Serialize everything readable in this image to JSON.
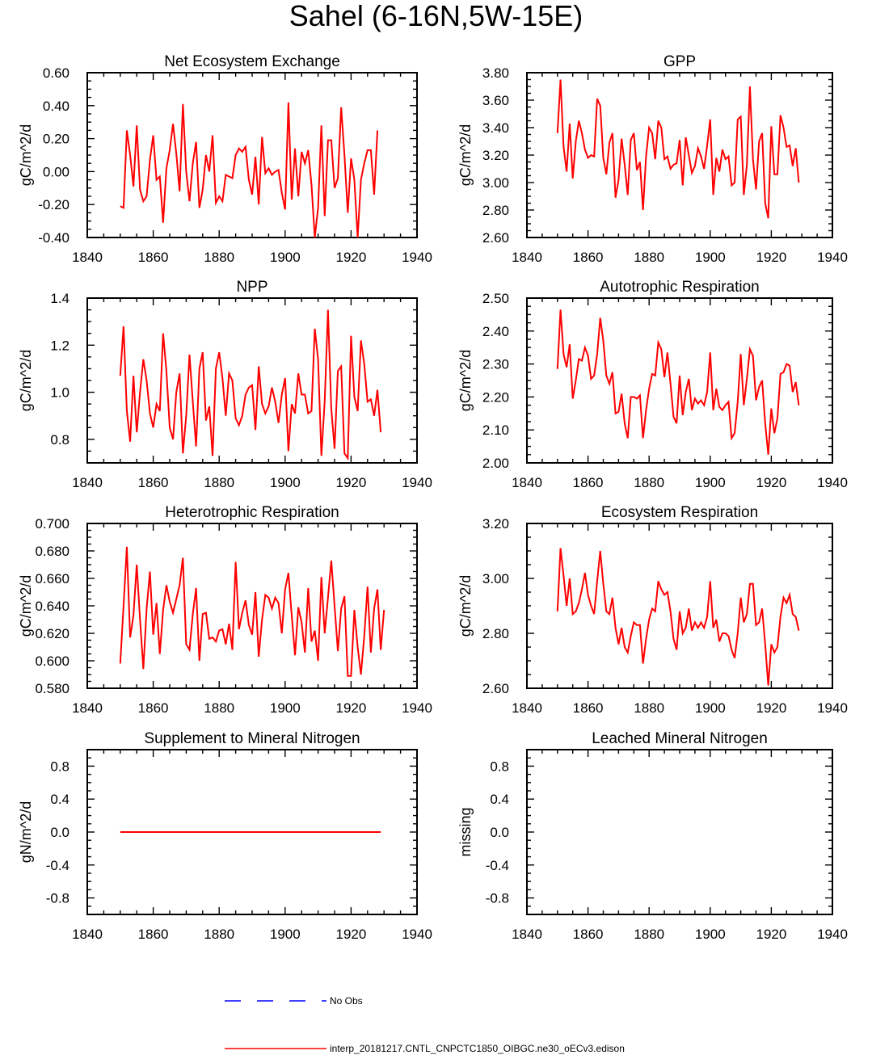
{
  "title": "Sahel (6-16N,5W-15E)",
  "colors": {
    "model": "#ff0000",
    "obs": "#0000ff",
    "axis": "#000000"
  },
  "legend": {
    "obs_label": "No Obs",
    "model_label": "interp_20181217.CNTL_CNPCTC1850_OIBGC.ne30_oECv3.edison"
  },
  "chart_data": [
    {
      "type": "line",
      "title": "Net Ecosystem Exchange",
      "ylabel": "gC/m^2/d",
      "xlim": [
        1840,
        1940
      ],
      "xticks": [
        1840,
        1860,
        1880,
        1900,
        1920,
        1940
      ],
      "ylim": [
        -0.4,
        0.6
      ],
      "yticks": [
        -0.4,
        -0.2,
        0.0,
        0.2,
        0.4,
        0.6
      ],
      "ytick_decimals": 2,
      "series": [
        {
          "name": "model",
          "x_start": 1850,
          "values": [
            -0.21,
            -0.22,
            0.25,
            0.1,
            -0.09,
            0.28,
            -0.11,
            -0.18,
            -0.15,
            0.07,
            0.22,
            -0.05,
            -0.03,
            -0.31,
            0.02,
            0.13,
            0.29,
            0.11,
            -0.12,
            0.41,
            0.0,
            -0.18,
            0.05,
            0.18,
            -0.22,
            -0.11,
            0.1,
            0.0,
            0.22,
            -0.19,
            -0.15,
            -0.18,
            -0.02,
            -0.03,
            -0.04,
            0.1,
            0.14,
            0.12,
            0.15,
            -0.05,
            -0.14,
            0.09,
            -0.2,
            0.21,
            -0.01,
            0.02,
            -0.02,
            0.0,
            0.01,
            -0.13,
            -0.23,
            0.42,
            -0.17,
            0.14,
            -0.15,
            0.12,
            0.05,
            0.13,
            -0.08,
            -0.4,
            -0.22,
            0.28,
            -0.27,
            0.19,
            0.19,
            -0.1,
            -0.04,
            0.39,
            0.1,
            -0.25,
            0.08,
            -0.05,
            -0.4,
            -0.05,
            0.05,
            0.13,
            0.13,
            -0.14,
            0.25
          ]
        }
      ]
    },
    {
      "type": "line",
      "title": "GPP",
      "ylabel": "gC/m^2/d",
      "xlim": [
        1840,
        1940
      ],
      "xticks": [
        1840,
        1860,
        1880,
        1900,
        1920,
        1940
      ],
      "ylim": [
        2.6,
        3.8
      ],
      "yticks": [
        2.6,
        2.8,
        3.0,
        3.2,
        3.4,
        3.6,
        3.8
      ],
      "ytick_decimals": 2,
      "series": [
        {
          "name": "model",
          "x_start": 1850,
          "values": [
            3.36,
            3.75,
            3.26,
            3.08,
            3.43,
            3.03,
            3.3,
            3.45,
            3.36,
            3.24,
            3.18,
            3.2,
            3.19,
            3.61,
            3.56,
            3.18,
            3.06,
            3.29,
            3.36,
            2.89,
            3.02,
            3.32,
            3.13,
            2.91,
            3.31,
            3.36,
            3.09,
            3.15,
            2.8,
            3.19,
            3.4,
            3.36,
            3.17,
            3.45,
            3.4,
            3.17,
            3.19,
            3.1,
            3.13,
            3.14,
            3.31,
            2.98,
            3.33,
            3.2,
            3.07,
            3.12,
            3.25,
            3.19,
            3.1,
            3.27,
            3.46,
            2.91,
            3.18,
            3.08,
            3.24,
            3.17,
            3.19,
            2.98,
            3.0,
            3.46,
            3.48,
            2.91,
            3.13,
            3.7,
            3.17,
            2.95,
            3.3,
            3.36,
            2.85,
            2.74,
            3.41,
            3.06,
            3.06,
            3.49,
            3.4,
            3.26,
            3.27,
            3.12,
            3.25,
            3.0
          ]
        }
      ]
    },
    {
      "type": "line",
      "title": "NPP",
      "ylabel": "gC/m^2/d",
      "xlim": [
        1840,
        1940
      ],
      "xticks": [
        1840,
        1860,
        1880,
        1900,
        1920,
        1940
      ],
      "ylim": [
        0.7,
        1.4
      ],
      "yticks": [
        0.8,
        1.0,
        1.2,
        1.4
      ],
      "ytick_decimals": 1,
      "series": [
        {
          "name": "model",
          "x_start": 1850,
          "values": [
            1.07,
            1.28,
            0.92,
            0.79,
            1.07,
            0.83,
            1.0,
            1.14,
            1.05,
            0.91,
            0.85,
            0.95,
            0.92,
            1.25,
            1.09,
            0.85,
            0.8,
            1.0,
            1.08,
            0.74,
            0.9,
            1.16,
            0.96,
            0.77,
            1.1,
            1.17,
            0.88,
            0.94,
            0.73,
            1.1,
            1.17,
            1.06,
            0.9,
            1.08,
            1.05,
            0.89,
            0.86,
            0.9,
            0.99,
            1.02,
            1.03,
            0.84,
            1.11,
            0.95,
            0.91,
            0.94,
            1.02,
            0.96,
            0.87,
            0.99,
            1.06,
            0.75,
            0.95,
            0.91,
            1.08,
            0.99,
            0.99,
            0.91,
            0.92,
            1.27,
            1.14,
            0.73,
            0.96,
            1.35,
            0.93,
            0.76,
            1.09,
            1.11,
            0.74,
            0.72,
            1.24,
            0.98,
            0.92,
            1.22,
            1.12,
            0.96,
            0.97,
            0.9,
            1.01,
            0.83
          ]
        }
      ]
    },
    {
      "type": "line",
      "title": "Autotrophic Respiration",
      "ylabel": "gC/m^2/d",
      "xlim": [
        1840,
        1940
      ],
      "xticks": [
        1840,
        1860,
        1880,
        1900,
        1920,
        1940
      ],
      "ylim": [
        2.0,
        2.5
      ],
      "yticks": [
        2.0,
        2.1,
        2.2,
        2.3,
        2.4,
        2.5
      ],
      "ytick_decimals": 2,
      "series": [
        {
          "name": "model",
          "x_start": 1850,
          "values": [
            2.285,
            2.465,
            2.33,
            2.29,
            2.36,
            2.195,
            2.25,
            2.315,
            2.31,
            2.35,
            2.325,
            2.255,
            2.265,
            2.33,
            2.44,
            2.37,
            2.265,
            2.24,
            2.275,
            2.15,
            2.155,
            2.21,
            2.12,
            2.075,
            2.2,
            2.2,
            2.195,
            2.205,
            2.075,
            2.16,
            2.225,
            2.27,
            2.265,
            2.365,
            2.345,
            2.26,
            2.335,
            2.24,
            2.14,
            2.12,
            2.265,
            2.145,
            2.215,
            2.255,
            2.16,
            2.195,
            2.18,
            2.19,
            2.175,
            2.215,
            2.335,
            2.16,
            2.225,
            2.17,
            2.16,
            2.175,
            2.185,
            2.075,
            2.09,
            2.185,
            2.33,
            2.175,
            2.255,
            2.345,
            2.325,
            2.19,
            2.23,
            2.25,
            2.12,
            2.025,
            2.165,
            2.09,
            2.135,
            2.27,
            2.275,
            2.3,
            2.295,
            2.215,
            2.245,
            2.175
          ]
        }
      ]
    },
    {
      "type": "line",
      "title": "Heterotrophic Respiration",
      "ylabel": "gC/m^2/d",
      "xlim": [
        1840,
        1940
      ],
      "xticks": [
        1840,
        1860,
        1880,
        1900,
        1920,
        1940
      ],
      "ylim": [
        0.58,
        0.7
      ],
      "yticks": [
        0.58,
        0.6,
        0.62,
        0.64,
        0.66,
        0.68,
        0.7
      ],
      "ytick_decimals": 3,
      "series": [
        {
          "name": "model",
          "x_start": 1850,
          "values": [
            0.598,
            0.64,
            0.683,
            0.617,
            0.633,
            0.67,
            0.63,
            0.594,
            0.638,
            0.665,
            0.619,
            0.642,
            0.605,
            0.637,
            0.655,
            0.643,
            0.635,
            0.645,
            0.655,
            0.675,
            0.612,
            0.608,
            0.634,
            0.653,
            0.6,
            0.634,
            0.635,
            0.616,
            0.617,
            0.614,
            0.622,
            0.623,
            0.612,
            0.627,
            0.608,
            0.672,
            0.623,
            0.635,
            0.644,
            0.626,
            0.619,
            0.65,
            0.603,
            0.63,
            0.648,
            0.646,
            0.638,
            0.646,
            0.642,
            0.62,
            0.652,
            0.664,
            0.633,
            0.604,
            0.639,
            0.628,
            0.606,
            0.653,
            0.614,
            0.622,
            0.6,
            0.661,
            0.62,
            0.646,
            0.673,
            0.64,
            0.607,
            0.638,
            0.647,
            0.589,
            0.589,
            0.637,
            0.61,
            0.59,
            0.618,
            0.654,
            0.606,
            0.638,
            0.652,
            0.608,
            0.637
          ]
        }
      ]
    },
    {
      "type": "line",
      "title": "Ecosystem Respiration",
      "ylabel": "gC/m^2/d",
      "xlim": [
        1840,
        1940
      ],
      "xticks": [
        1840,
        1860,
        1880,
        1900,
        1920,
        1940
      ],
      "ylim": [
        2.6,
        3.2
      ],
      "yticks": [
        2.6,
        2.8,
        3.0,
        3.2
      ],
      "ytick_decimals": 2,
      "series": [
        {
          "name": "model",
          "x_start": 1850,
          "values": [
            2.88,
            3.11,
            3.01,
            2.9,
            3.0,
            2.87,
            2.88,
            2.91,
            2.96,
            3.02,
            2.94,
            2.9,
            2.87,
            2.99,
            3.1,
            2.98,
            2.88,
            2.87,
            2.93,
            2.82,
            2.76,
            2.82,
            2.75,
            2.73,
            2.79,
            2.84,
            2.83,
            2.83,
            2.69,
            2.78,
            2.85,
            2.89,
            2.88,
            2.99,
            2.96,
            2.94,
            2.95,
            2.88,
            2.78,
            2.74,
            2.88,
            2.8,
            2.82,
            2.89,
            2.81,
            2.84,
            2.82,
            2.84,
            2.82,
            2.86,
            2.99,
            2.82,
            2.85,
            2.77,
            2.8,
            2.8,
            2.79,
            2.74,
            2.71,
            2.8,
            2.93,
            2.84,
            2.87,
            2.98,
            2.98,
            2.83,
            2.84,
            2.89,
            2.76,
            2.61,
            2.76,
            2.73,
            2.75,
            2.86,
            2.93,
            2.91,
            2.94,
            2.87,
            2.86,
            2.81
          ]
        }
      ]
    },
    {
      "type": "line",
      "title": "Supplement to Mineral Nitrogen",
      "ylabel": "gN/m^2/d",
      "xlim": [
        1840,
        1940
      ],
      "xticks": [
        1840,
        1860,
        1880,
        1900,
        1920,
        1940
      ],
      "ylim": [
        -1.0,
        1.0
      ],
      "yticks": [
        -0.8,
        -0.4,
        0.0,
        0.4,
        0.8
      ],
      "ytick_decimals": 1,
      "series": [
        {
          "name": "model",
          "x_start": 1850,
          "values": [
            0,
            0,
            0,
            0,
            0,
            0,
            0,
            0,
            0,
            0,
            0,
            0,
            0,
            0,
            0,
            0,
            0,
            0,
            0,
            0,
            0,
            0,
            0,
            0,
            0,
            0,
            0,
            0,
            0,
            0,
            0,
            0,
            0,
            0,
            0,
            0,
            0,
            0,
            0,
            0,
            0,
            0,
            0,
            0,
            0,
            0,
            0,
            0,
            0,
            0,
            0,
            0,
            0,
            0,
            0,
            0,
            0,
            0,
            0,
            0,
            0,
            0,
            0,
            0,
            0,
            0,
            0,
            0,
            0,
            0,
            0,
            0,
            0,
            0,
            0,
            0,
            0,
            0,
            0,
            0
          ]
        }
      ]
    },
    {
      "type": "line",
      "title": "Leached Mineral Nitrogen",
      "ylabel": "missing",
      "xlim": [
        1840,
        1940
      ],
      "xticks": [
        1840,
        1860,
        1880,
        1900,
        1920,
        1940
      ],
      "ylim": [
        -1.0,
        1.0
      ],
      "yticks": [
        -0.8,
        -0.4,
        0.0,
        0.4,
        0.8
      ],
      "ytick_decimals": 1,
      "series": []
    }
  ]
}
